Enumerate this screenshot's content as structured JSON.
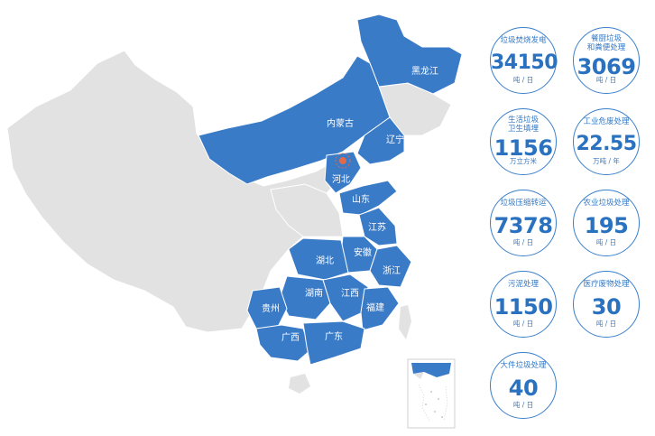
{
  "map": {
    "provinces": [
      "黑龙江",
      "内蒙古",
      "辽宁",
      "河北",
      "山东",
      "江苏",
      "安徽",
      "浙江",
      "湖北",
      "湖南",
      "江西",
      "福建",
      "贵州",
      "广西",
      "广东"
    ],
    "highlight_color": "#3a7bc8",
    "base_color": "#e2e2e2",
    "marker_color": "#e06a4b"
  },
  "stats": [
    {
      "label": "垃圾焚烧发电",
      "value": "34150",
      "unit": "吨 / 日"
    },
    {
      "label": "餐厨垃圾\n和粪便处理",
      "value": "3069",
      "unit": "吨 / 日"
    },
    {
      "label": "生活垃圾\n卫生填埋",
      "value": "1156",
      "unit": "万立方米"
    },
    {
      "label": "工业危废处理",
      "value": "22.55",
      "unit": "万吨 / 年"
    },
    {
      "label": "垃圾压缩转运",
      "value": "7378",
      "unit": "吨 / 日"
    },
    {
      "label": "农业垃圾处理",
      "value": "195",
      "unit": "吨 / 日"
    },
    {
      "label": "污泥处理",
      "value": "1150",
      "unit": "吨 / 日"
    },
    {
      "label": "医疗废物处理",
      "value": "30",
      "unit": "吨 / 日"
    },
    {
      "label": "大件垃圾处理",
      "value": "40",
      "unit": "吨 / 日"
    }
  ]
}
